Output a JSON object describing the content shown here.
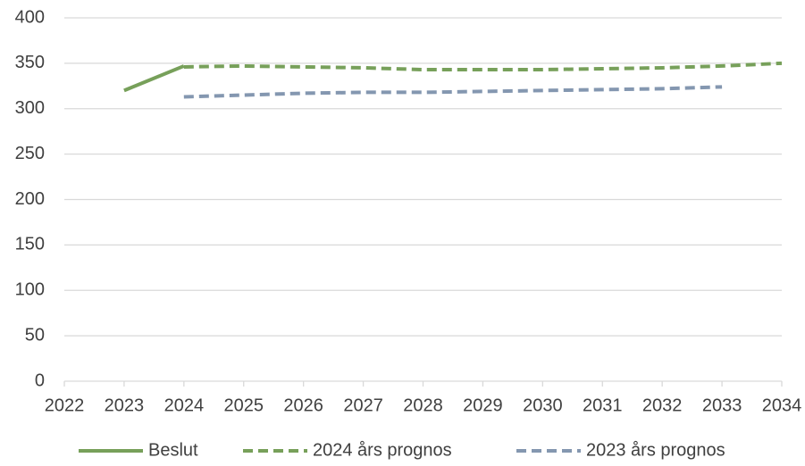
{
  "chart_data": {
    "type": "line",
    "x": [
      2022,
      2023,
      2024,
      2025,
      2026,
      2027,
      2028,
      2029,
      2030,
      2031,
      2032,
      2033,
      2034
    ],
    "xlim": [
      2022,
      2034
    ],
    "xticks": [
      2022,
      2023,
      2024,
      2025,
      2026,
      2027,
      2028,
      2029,
      2030,
      2031,
      2032,
      2033,
      2034
    ],
    "ylim": [
      0,
      400
    ],
    "yticks": [
      0,
      50,
      100,
      150,
      200,
      250,
      300,
      350,
      400
    ],
    "grid": true,
    "legend": "bottom",
    "series": [
      {
        "name": "Beslut",
        "color": "#77a05a",
        "dash": "solid",
        "values": [
          null,
          320,
          347,
          null,
          null,
          null,
          null,
          null,
          null,
          null,
          null,
          null,
          null
        ]
      },
      {
        "name": "2024 års prognos",
        "color": "#77a05a",
        "dash": "dashed",
        "values": [
          null,
          null,
          346,
          347,
          346,
          345,
          343,
          343,
          343,
          344,
          345,
          347,
          350
        ]
      },
      {
        "name": "2023 års prognos",
        "color": "#8497b0",
        "dash": "dashed",
        "values": [
          null,
          null,
          313,
          315,
          317,
          318,
          318,
          319,
          320,
          321,
          322,
          324,
          null
        ]
      }
    ]
  }
}
